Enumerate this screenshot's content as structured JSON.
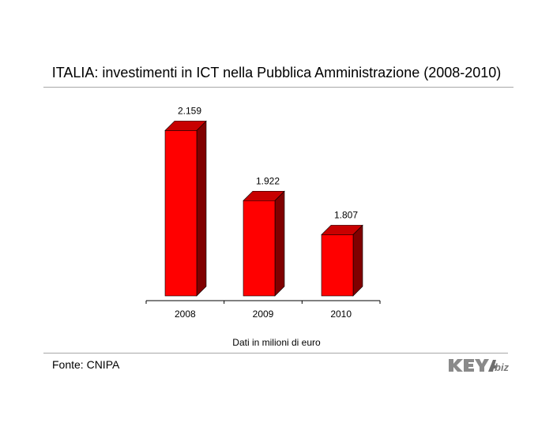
{
  "title": "ITALIA: investimenti in ICT nella Pubblica Amministrazione (2008-2010)",
  "note": "Dati in milioni di euro",
  "source": "Fonte: CNIPA",
  "logo_text": "KEY4biz",
  "colors": {
    "bar_front": "#ff0000",
    "bar_side": "#800000",
    "bar_top": "#c80000",
    "logo": "#7f7f7f"
  },
  "chart_data": {
    "type": "bar",
    "title": "ITALIA: investimenti in ICT nella Pubblica Amministrazione (2008-2010)",
    "categories": [
      "2008",
      "2009",
      "2010"
    ],
    "values": [
      2159,
      1922,
      1807
    ],
    "value_labels": [
      "2.159",
      "1.922",
      "1.807"
    ],
    "xlabel": "",
    "ylabel": "",
    "ylim": [
      1600,
      2200
    ],
    "grid": false,
    "style": "3d"
  }
}
